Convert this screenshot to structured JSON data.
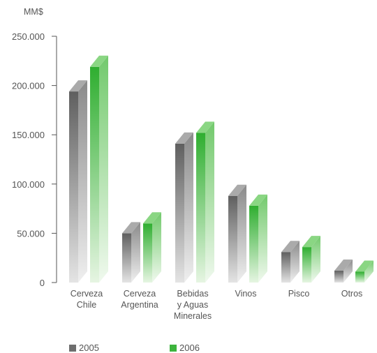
{
  "chart_data": {
    "type": "bar",
    "unit_label": "MM$",
    "categories": [
      [
        "Cerveza",
        "Chile"
      ],
      [
        "Cerveza",
        "Argentina"
      ],
      [
        "Bebidas",
        "y Aguas",
        "Minerales"
      ],
      [
        "Vinos"
      ],
      [
        "Pisco"
      ],
      [
        "Otros"
      ]
    ],
    "series": [
      {
        "name": "2005",
        "color": "#6e6e6e",
        "values": [
          194000,
          50000,
          141000,
          88000,
          31000,
          12000
        ]
      },
      {
        "name": "2006",
        "color": "#3db43d",
        "values": [
          219000,
          60000,
          152000,
          78000,
          36000,
          11000
        ]
      }
    ],
    "ylim": [
      0,
      250000
    ],
    "yticks": [
      0,
      50000,
      100000,
      150000,
      200000,
      250000
    ],
    "ytick_labels": [
      "0",
      "50.000",
      "100.000",
      "150.000",
      "200.000",
      "250.000"
    ],
    "legend_position": "bottom",
    "grid": false
  }
}
